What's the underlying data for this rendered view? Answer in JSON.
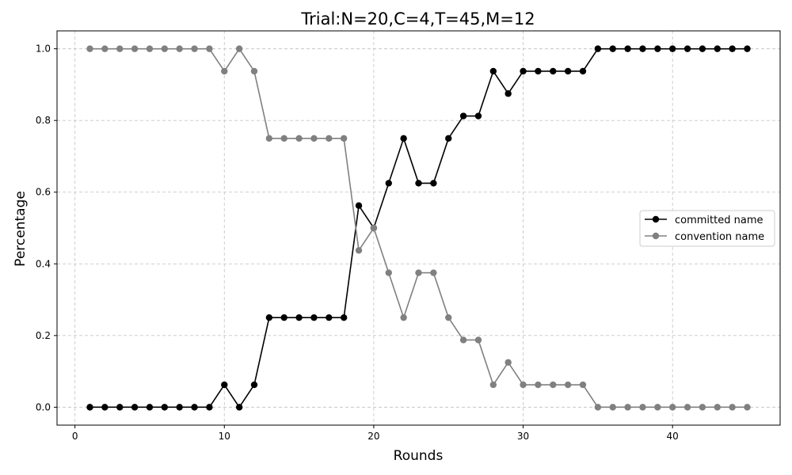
{
  "chart_data": {
    "type": "line",
    "title": "Trial:N=20,C=4,T=45,M=12",
    "xlabel": "Rounds",
    "ylabel": "Percentage",
    "xlim": [
      -1.2,
      47.2
    ],
    "ylim": [
      -0.05,
      1.05
    ],
    "xticks": [
      0,
      10,
      20,
      30,
      40
    ],
    "yticks": [
      0.0,
      0.2,
      0.4,
      0.6,
      0.8,
      1.0
    ],
    "xtick_labels": [
      "0",
      "10",
      "20",
      "30",
      "40"
    ],
    "ytick_labels": [
      "0.0",
      "0.2",
      "0.4",
      "0.6",
      "0.8",
      "1.0"
    ],
    "grid": true,
    "legend_position": "center-right",
    "x": [
      1,
      2,
      3,
      4,
      5,
      6,
      7,
      8,
      9,
      10,
      11,
      12,
      13,
      14,
      15,
      16,
      17,
      18,
      19,
      20,
      21,
      22,
      23,
      24,
      25,
      26,
      27,
      28,
      29,
      30,
      31,
      32,
      33,
      34,
      35,
      36,
      37,
      38,
      39,
      40,
      41,
      42,
      43,
      44,
      45
    ],
    "series": [
      {
        "name": "committed name",
        "color": "#000000",
        "values": [
          0,
          0,
          0,
          0,
          0,
          0,
          0,
          0,
          0,
          0.0625,
          0,
          0.0625,
          0.25,
          0.25,
          0.25,
          0.25,
          0.25,
          0.25,
          0.5625,
          0.5,
          0.625,
          0.75,
          0.625,
          0.625,
          0.75,
          0.8125,
          0.8125,
          0.9375,
          0.875,
          0.9375,
          0.9375,
          0.9375,
          0.9375,
          0.9375,
          1,
          1,
          1,
          1,
          1,
          1,
          1,
          1,
          1,
          1,
          1
        ]
      },
      {
        "name": "convention name",
        "color": "#808080",
        "values": [
          1,
          1,
          1,
          1,
          1,
          1,
          1,
          1,
          1,
          0.9375,
          1,
          0.9375,
          0.75,
          0.75,
          0.75,
          0.75,
          0.75,
          0.75,
          0.4375,
          0.5,
          0.375,
          0.25,
          0.375,
          0.375,
          0.25,
          0.1875,
          0.1875,
          0.0625,
          0.125,
          0.0625,
          0.0625,
          0.0625,
          0.0625,
          0.0625,
          0,
          0,
          0,
          0,
          0,
          0,
          0,
          0,
          0,
          0,
          0
        ]
      }
    ]
  }
}
